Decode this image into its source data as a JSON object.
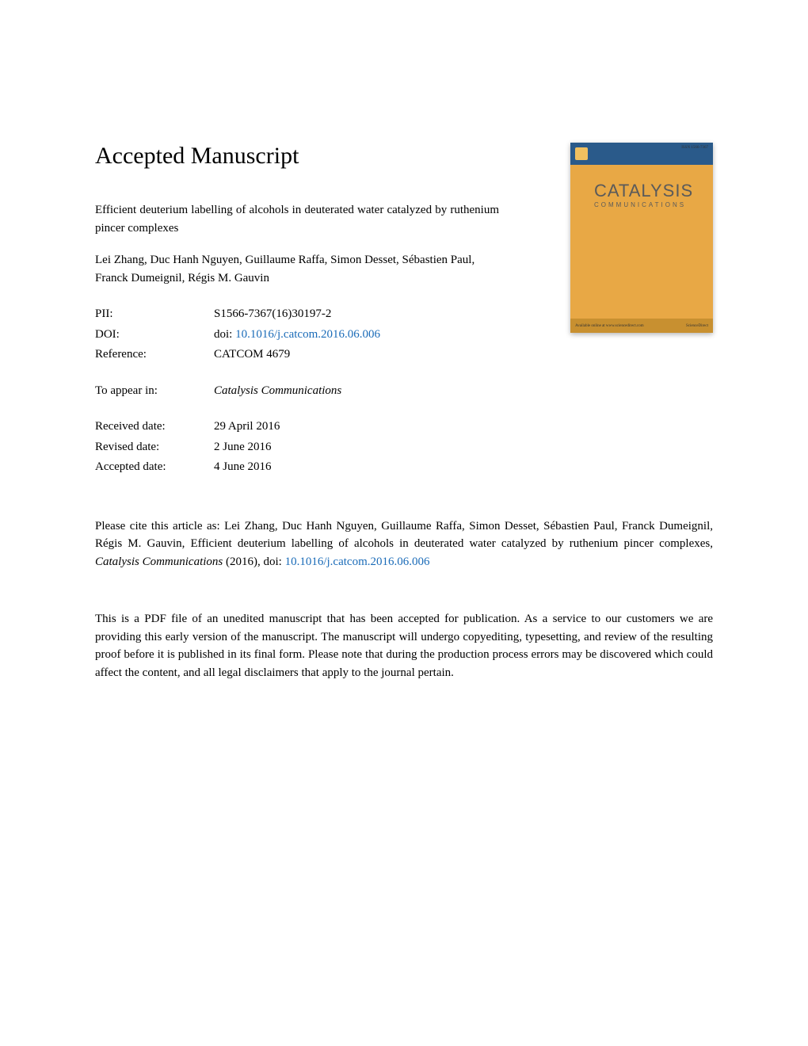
{
  "heading": "Accepted Manuscript",
  "article_title": "Efficient deuterium labelling of alcohols in deuterated water catalyzed by ruthenium pincer complexes",
  "authors": "Lei Zhang, Duc Hanh Nguyen, Guillaume Raffa, Simon Desset, Sébastien Paul, Franck Dumeignil, Régis M. Gauvin",
  "meta": {
    "pii_label": "PII:",
    "pii_value": "S1566-7367(16)30197-2",
    "doi_label": "DOI:",
    "doi_prefix": "doi: ",
    "doi_link": "10.1016/j.catcom.2016.06.006",
    "reference_label": "Reference:",
    "reference_value": "CATCOM 4679",
    "appear_label": "To appear in:",
    "appear_value": "Catalysis Communications",
    "received_label": "Received date:",
    "received_value": "29 April 2016",
    "revised_label": "Revised date:",
    "revised_value": "2 June 2016",
    "accepted_label": "Accepted date:",
    "accepted_value": "4 June 2016"
  },
  "citation": {
    "prefix": "Please cite this article as: Lei Zhang, Duc Hanh Nguyen, Guillaume Raffa, Simon Desset, Sébastien Paul, Franck Dumeignil, Régis M. Gauvin, Efficient deuterium labelling of alcohols in deuterated water catalyzed by ruthenium pincer complexes, ",
    "journal": "Catalysis Communications",
    "year": " (2016),  doi: ",
    "doi_link": "10.1016/j.catcom.2016.06.006"
  },
  "disclaimer": "This is a PDF file of an unedited manuscript that has been accepted for publication. As a service to our customers we are providing this early version of the manuscript. The manuscript will undergo copyediting, typesetting, and review of the resulting proof before it is published in its final form. Please note that during the production process errors may be discovered which could affect the content, and all legal disclaimers that apply to the journal pertain.",
  "cover": {
    "catalysis": "CATALYSIS",
    "communications": "COMMUNICATIONS",
    "issn": "ISSN 1566-7367",
    "bottom_left": "Available online at www.sciencedirect.com",
    "bottom_right": "ScienceDirect"
  },
  "colors": {
    "link": "#1a6bb8",
    "cover_bg": "#e8a845",
    "cover_top": "#2a5a8a",
    "cover_bottom": "#c89030",
    "cover_text": "#5a5a5a"
  }
}
